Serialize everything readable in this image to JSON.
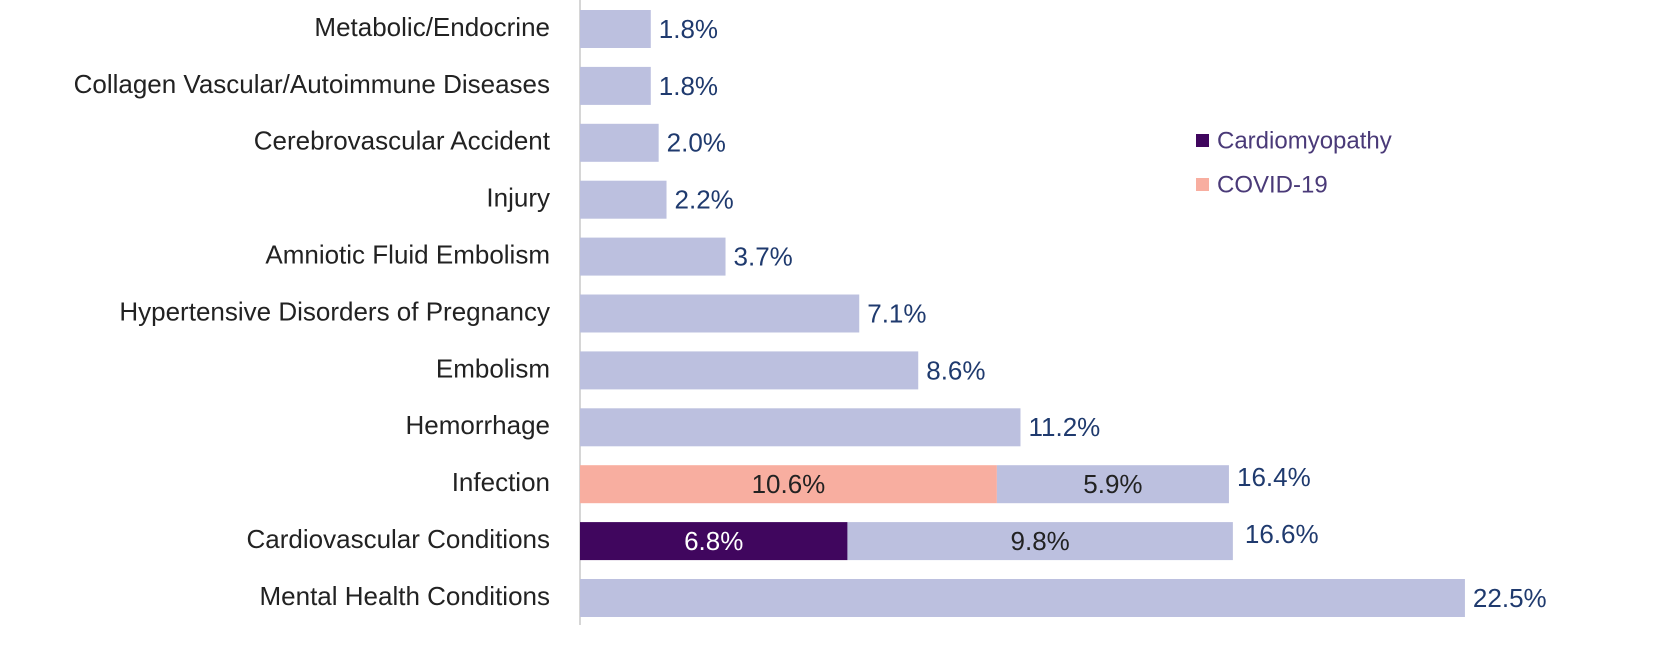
{
  "chart_data": {
    "type": "stacked-barh",
    "categories": [
      "Metabolic/Endocrine",
      "Collagen Vascular/Autoimmune Diseases",
      "Cerebrovascular Accident",
      "Injury",
      "Amniotic Fluid Embolism",
      "Hypertensive Disorders of Pregnancy",
      "Embolism",
      "Hemorrhage",
      "Infection",
      "Cardiovascular Conditions",
      "Mental Health Conditions"
    ],
    "series": [
      {
        "name": "Cardiomyopathy",
        "color": "#40065e",
        "values": [
          null,
          null,
          null,
          null,
          null,
          null,
          null,
          null,
          null,
          6.8,
          null
        ],
        "value_labels": [
          null,
          null,
          null,
          null,
          null,
          null,
          null,
          null,
          null,
          "6.8%",
          null
        ]
      },
      {
        "name": "COVID-19",
        "color": "#f8aea0",
        "values": [
          null,
          null,
          null,
          null,
          null,
          null,
          null,
          null,
          10.6,
          null,
          null
        ],
        "value_labels": [
          null,
          null,
          null,
          null,
          null,
          null,
          null,
          null,
          "10.6%",
          null,
          null
        ]
      },
      {
        "color": "#bcc0df",
        "values": [
          1.8,
          1.8,
          2.0,
          2.2,
          3.7,
          7.1,
          8.6,
          11.2,
          5.9,
          9.8,
          22.5
        ],
        "value_labels": [
          "1.8%",
          "1.8%",
          "2.0%",
          "2.2%",
          "3.7%",
          "7.1%",
          "8.6%",
          "11.2%",
          "5.9%",
          "9.8%",
          "22.5%"
        ]
      }
    ],
    "totals": [
      null,
      null,
      null,
      null,
      null,
      null,
      null,
      null,
      16.4,
      16.6,
      null
    ],
    "total_labels": [
      null,
      null,
      null,
      null,
      null,
      null,
      null,
      null,
      "16.4%",
      "16.6%",
      null
    ],
    "xlim": [
      0,
      25
    ],
    "legend": "upper right"
  }
}
